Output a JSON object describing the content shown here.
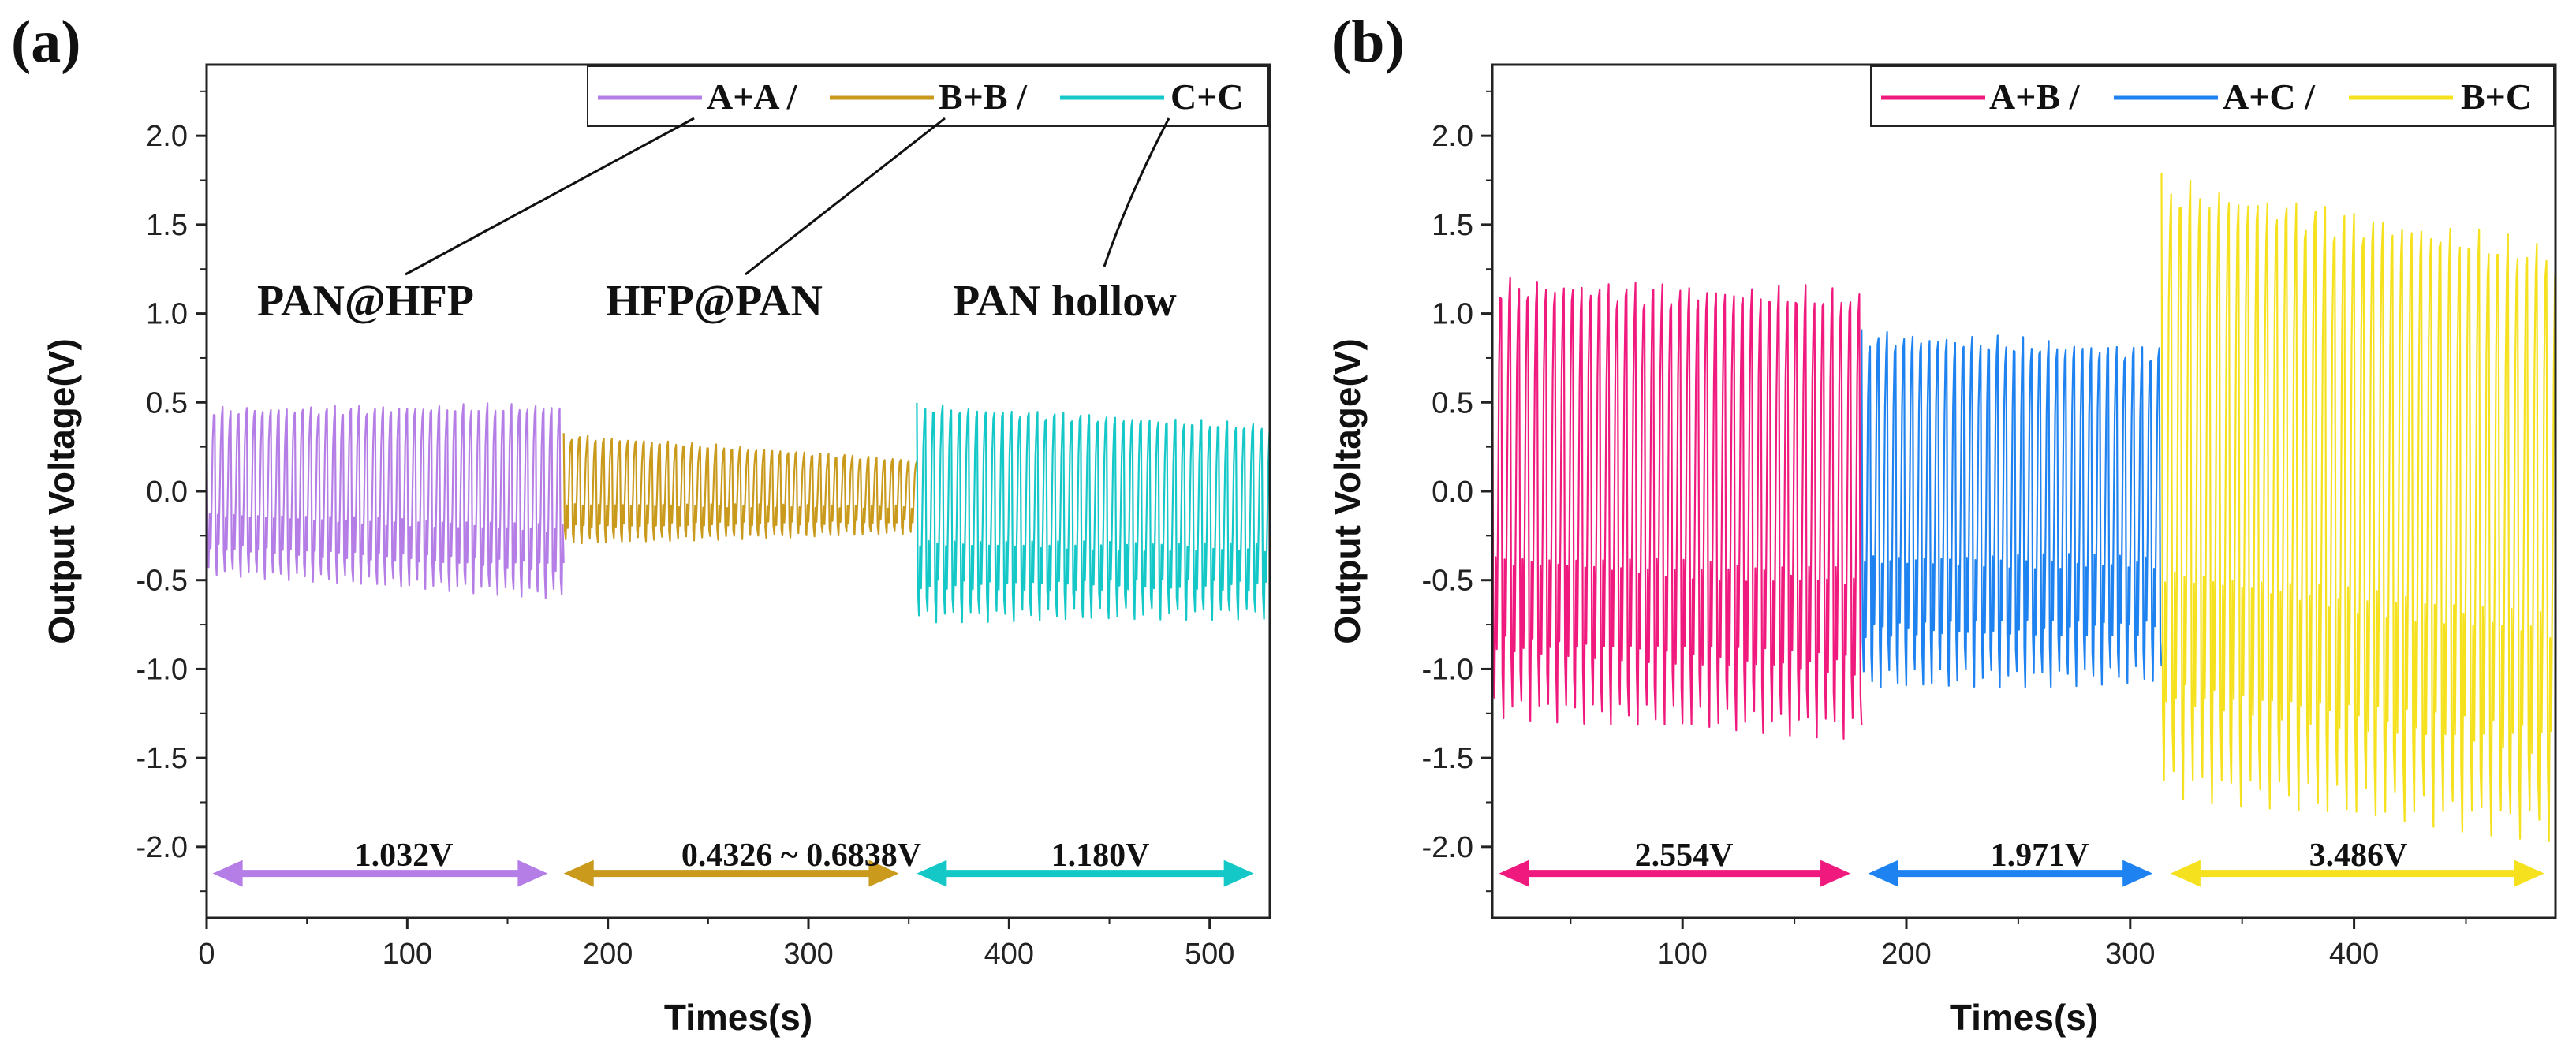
{
  "chart_data": [
    {
      "type": "line",
      "panel": "(a)",
      "xlabel": "Times(s)",
      "ylabel": "Output Voltage(V)",
      "xlim": [
        0,
        530
      ],
      "ylim": [
        -2.4,
        2.4
      ],
      "xticks": [
        0,
        100,
        200,
        300,
        400,
        500
      ],
      "yticks": [
        -2.0,
        -1.5,
        -1.0,
        -0.5,
        0.0,
        0.5,
        1.0,
        1.5,
        2.0
      ],
      "legend_position": "top-right",
      "series": [
        {
          "name": "A+A /",
          "color": "#b57ee6",
          "x_start": 0,
          "x_end": 178,
          "top_start": 0.48,
          "top_end": 0.5,
          "bottom_start": -0.47,
          "bottom_end": -0.61,
          "period": 4.0
        },
        {
          "name": "B+B /",
          "color": "#c99a1c",
          "x_start": 178,
          "x_end": 354,
          "top_start": 0.33,
          "top_end": 0.18,
          "bottom_start": -0.3,
          "bottom_end": -0.24,
          "period": 4.0
        },
        {
          "name": "C+C",
          "color": "#15c8c8",
          "x_start": 354,
          "x_end": 530,
          "top_start": 0.5,
          "top_end": 0.38,
          "bottom_start": -0.74,
          "bottom_end": -0.72,
          "period": 4.3
        }
      ],
      "annotations": [
        {
          "text": "PAN@HFP",
          "target_legend": 0
        },
        {
          "text": "HFP@PAN",
          "target_legend": 1
        },
        {
          "text": "PAN hollow",
          "target_legend": 2
        }
      ],
      "range_arrows": [
        {
          "label": "1.032V",
          "x_from": 3,
          "x_to": 170,
          "y": -2.15,
          "color": "#b57ee6"
        },
        {
          "label": "0.4326 ~ 0.6838V",
          "x_from": 178,
          "x_to": 345,
          "y": -2.15,
          "color": "#c99a1c"
        },
        {
          "label": "1.180V",
          "x_from": 354,
          "x_to": 522,
          "y": -2.15,
          "color": "#15c8c8"
        }
      ]
    },
    {
      "type": "line",
      "panel": "(b)",
      "xlabel": "Times(s)",
      "ylabel": "Output Voltage(V)",
      "xlim": [
        15,
        490
      ],
      "ylim": [
        -2.4,
        2.4
      ],
      "xticks": [
        100,
        200,
        300,
        400
      ],
      "yticks": [
        -2.0,
        -1.5,
        -1.0,
        -0.5,
        0.0,
        0.5,
        1.0,
        1.5,
        2.0
      ],
      "legend_position": "top-right",
      "series": [
        {
          "name": "A+B /",
          "color": "#f0197d",
          "x_start": 15,
          "x_end": 180,
          "top_start": 1.22,
          "top_end": 1.15,
          "bottom_start": -1.28,
          "bottom_end": -1.4,
          "period": 4.0
        },
        {
          "name": "A+C /",
          "color": "#1e82f0",
          "x_start": 180,
          "x_end": 314,
          "top_start": 0.92,
          "top_end": 0.83,
          "bottom_start": -1.12,
          "bottom_end": -1.09,
          "period": 3.8
        },
        {
          "name": "B+C",
          "color": "#f5e11e",
          "x_start": 314,
          "x_end": 490,
          "top_start": 1.8,
          "top_end": 1.4,
          "bottom_start": -1.72,
          "bottom_end": -1.98,
          "period": 4.3
        }
      ],
      "range_arrows": [
        {
          "label": "2.554V",
          "x_from": 18,
          "x_to": 175,
          "y": -2.15,
          "color": "#f0197d"
        },
        {
          "label": "1.971V",
          "x_from": 183,
          "x_to": 310,
          "y": -2.15,
          "color": "#1e82f0"
        },
        {
          "label": "3.486V",
          "x_from": 318,
          "x_to": 485,
          "y": -2.15,
          "color": "#f5e11e"
        }
      ]
    }
  ]
}
